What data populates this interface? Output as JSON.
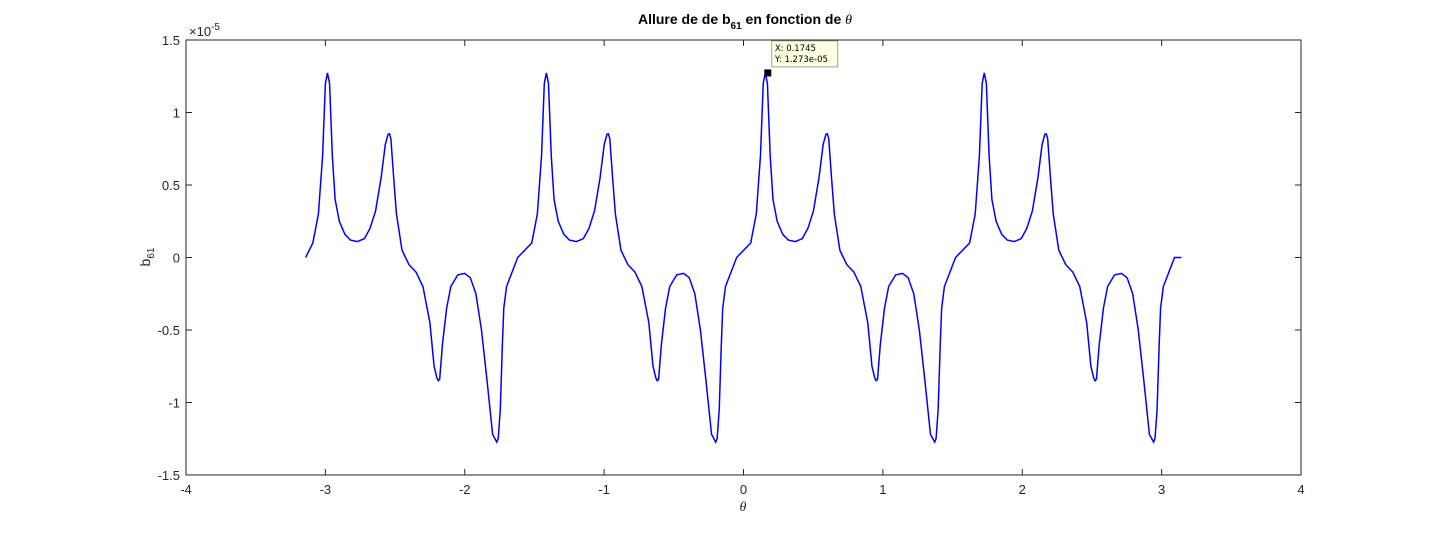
{
  "chart_data": {
    "type": "line",
    "title": {
      "prefix": "Allure de de b",
      "subscript": "61",
      "middle": " en fonction de ",
      "symbol": "θ"
    },
    "xlabel": "θ",
    "ylabel": {
      "base": "b",
      "subscript": "61"
    },
    "xlim": [
      -4,
      4
    ],
    "ylim": [
      -1.5,
      1.5
    ],
    "y_exponent": {
      "base": "×10",
      "power": "-5"
    },
    "xticks": [
      "-4",
      "-3",
      "-2",
      "-1",
      "0",
      "1",
      "2",
      "3",
      "4"
    ],
    "yticks": [
      "-1.5",
      "-1",
      "-0.5",
      "0",
      "0.5",
      "1",
      "1.5"
    ],
    "grid": false,
    "line_color": "#0000ff",
    "series": [
      {
        "x": [
          -3.1416,
          -3.09,
          -3.05,
          -3.02,
          -3.0,
          -2.985,
          -2.97,
          -2.95,
          -2.93,
          -2.9,
          -2.86,
          -2.82,
          -2.77,
          -2.72,
          -2.68,
          -2.64,
          -2.6,
          -2.57,
          -2.55,
          -2.54,
          -2.53,
          -2.51,
          -2.49,
          -2.45,
          -2.4,
          -2.35,
          -2.3,
          -2.25,
          -2.22,
          -2.2,
          -2.19,
          -2.18,
          -2.16,
          -2.13,
          -2.1,
          -2.05,
          -2.0,
          -1.96,
          -1.92,
          -1.88,
          -1.84,
          -1.8,
          -1.77,
          -1.76,
          -1.745,
          -1.73,
          -1.72,
          -1.7,
          -1.66,
          -1.62
        ],
        "values": [
          0.0,
          0.1,
          0.3,
          0.7,
          1.2,
          1.273,
          1.2,
          0.7,
          0.4,
          0.25,
          0.16,
          0.12,
          0.11,
          0.13,
          0.2,
          0.32,
          0.55,
          0.78,
          0.85,
          0.853,
          0.82,
          0.55,
          0.3,
          0.05,
          -0.05,
          -0.1,
          -0.2,
          -0.45,
          -0.75,
          -0.83,
          -0.85,
          -0.84,
          -0.6,
          -0.35,
          -0.2,
          -0.12,
          -0.11,
          -0.14,
          -0.25,
          -0.5,
          -0.85,
          -1.22,
          -1.273,
          -1.25,
          -1.05,
          -0.6,
          -0.35,
          -0.2,
          -0.1,
          0.0
        ]
      }
    ],
    "period": 1.5708,
    "datatip": {
      "x_text": "X: 0.1745",
      "y_text": "Y: 1.273e-05",
      "x": 0.1745,
      "y": 1.273
    }
  }
}
